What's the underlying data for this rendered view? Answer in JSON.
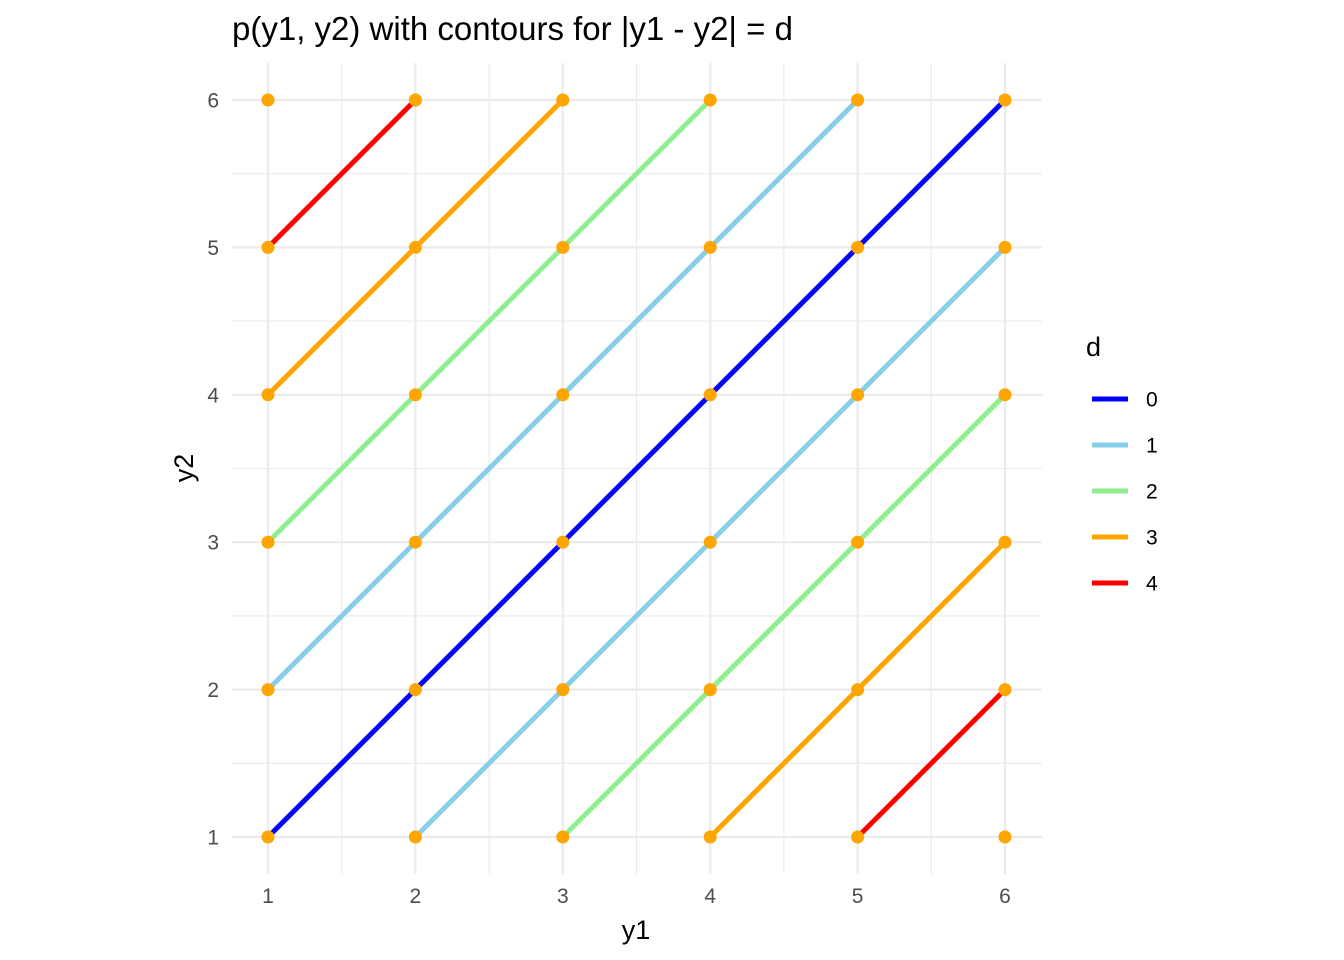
{
  "chart_data": {
    "type": "line",
    "title": "p(y1, y2) with contours for |y1 - y2| = d",
    "xlabel": "y1",
    "ylabel": "y2",
    "xlim": [
      1,
      6
    ],
    "ylim": [
      1,
      6
    ],
    "x_ticks": [
      "1",
      "2",
      "3",
      "4",
      "5",
      "6"
    ],
    "y_ticks": [
      "1",
      "2",
      "3",
      "4",
      "5",
      "6"
    ],
    "grid": true,
    "legend": {
      "title": "d",
      "placement": "right"
    },
    "point_color": "#FFA500",
    "series": [
      {
        "name": "0",
        "color": "#0000FF",
        "segments": [
          [
            [
              1,
              1
            ],
            [
              6,
              6
            ]
          ]
        ]
      },
      {
        "name": "1",
        "color": "#87CEEB",
        "segments": [
          [
            [
              1,
              2
            ],
            [
              5,
              6
            ]
          ],
          [
            [
              2,
              1
            ],
            [
              6,
              5
            ]
          ]
        ]
      },
      {
        "name": "2",
        "color": "#90EE90",
        "segments": [
          [
            [
              1,
              3
            ],
            [
              4,
              6
            ]
          ],
          [
            [
              3,
              1
            ],
            [
              6,
              4
            ]
          ]
        ]
      },
      {
        "name": "3",
        "color": "#FFA500",
        "segments": [
          [
            [
              1,
              4
            ],
            [
              3,
              6
            ]
          ],
          [
            [
              4,
              1
            ],
            [
              6,
              3
            ]
          ]
        ]
      },
      {
        "name": "4",
        "color": "#FF0000",
        "segments": [
          [
            [
              1,
              5
            ],
            [
              2,
              6
            ]
          ],
          [
            [
              5,
              1
            ],
            [
              6,
              2
            ]
          ]
        ]
      }
    ],
    "points": {
      "x": [
        1,
        2,
        3,
        4,
        5,
        6
      ],
      "y": [
        1,
        2,
        3,
        4,
        5,
        6
      ]
    }
  }
}
